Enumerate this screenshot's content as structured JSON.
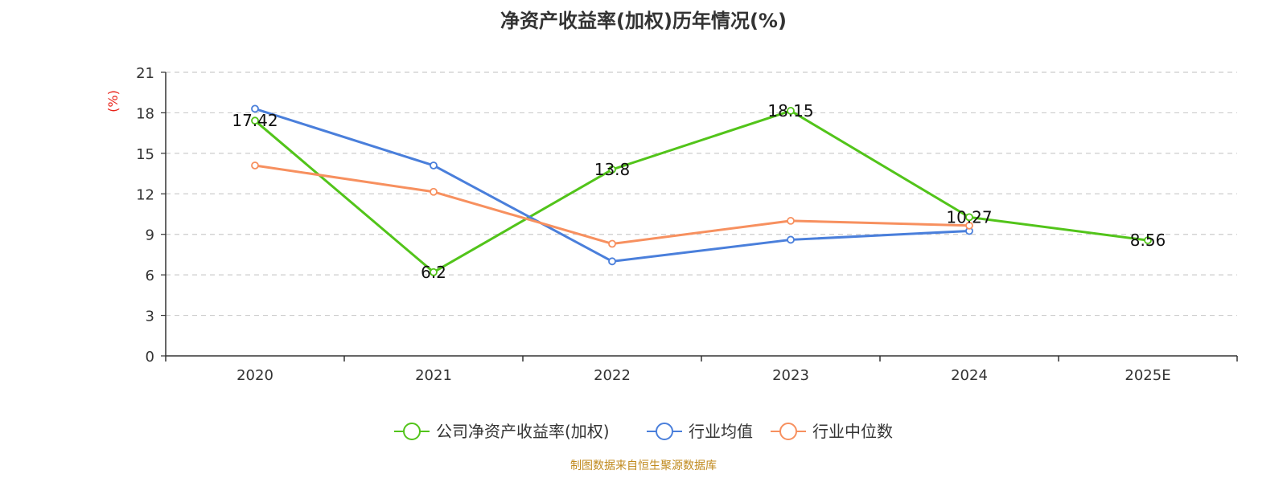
{
  "title": "净资产收益率(加权)历年情况(%)",
  "source": "制图数据来自恒生聚源数据库",
  "chart_data": {
    "type": "line",
    "title": "净资产收益率(加权)历年情况(%)",
    "ylabel": "(%)",
    "ylabel_color": "#e8231a",
    "xlabel": "",
    "ylim": [
      0,
      21
    ],
    "yticks": [
      0,
      3,
      6,
      9,
      12,
      15,
      18,
      21
    ],
    "grid": true,
    "categories": [
      "2020",
      "2021",
      "2022",
      "2023",
      "2024",
      "2025E"
    ],
    "series": [
      {
        "name": "公司净资产收益率(加权)",
        "color": "#52c41a",
        "values": [
          17.42,
          6.2,
          13.8,
          18.15,
          10.27,
          8.56
        ],
        "labels": [
          "17.42",
          "6.2",
          "13.8",
          "18.15",
          "10.27",
          "8.56"
        ]
      },
      {
        "name": "行业均值",
        "color": "#4a7fdb",
        "values": [
          18.3,
          14.1,
          7.0,
          8.6,
          9.25,
          null
        ]
      },
      {
        "name": "行业中位数",
        "color": "#f7905f",
        "values": [
          14.1,
          12.15,
          8.3,
          10.0,
          9.65,
          null
        ]
      }
    ],
    "legend_position": "bottom-center"
  }
}
